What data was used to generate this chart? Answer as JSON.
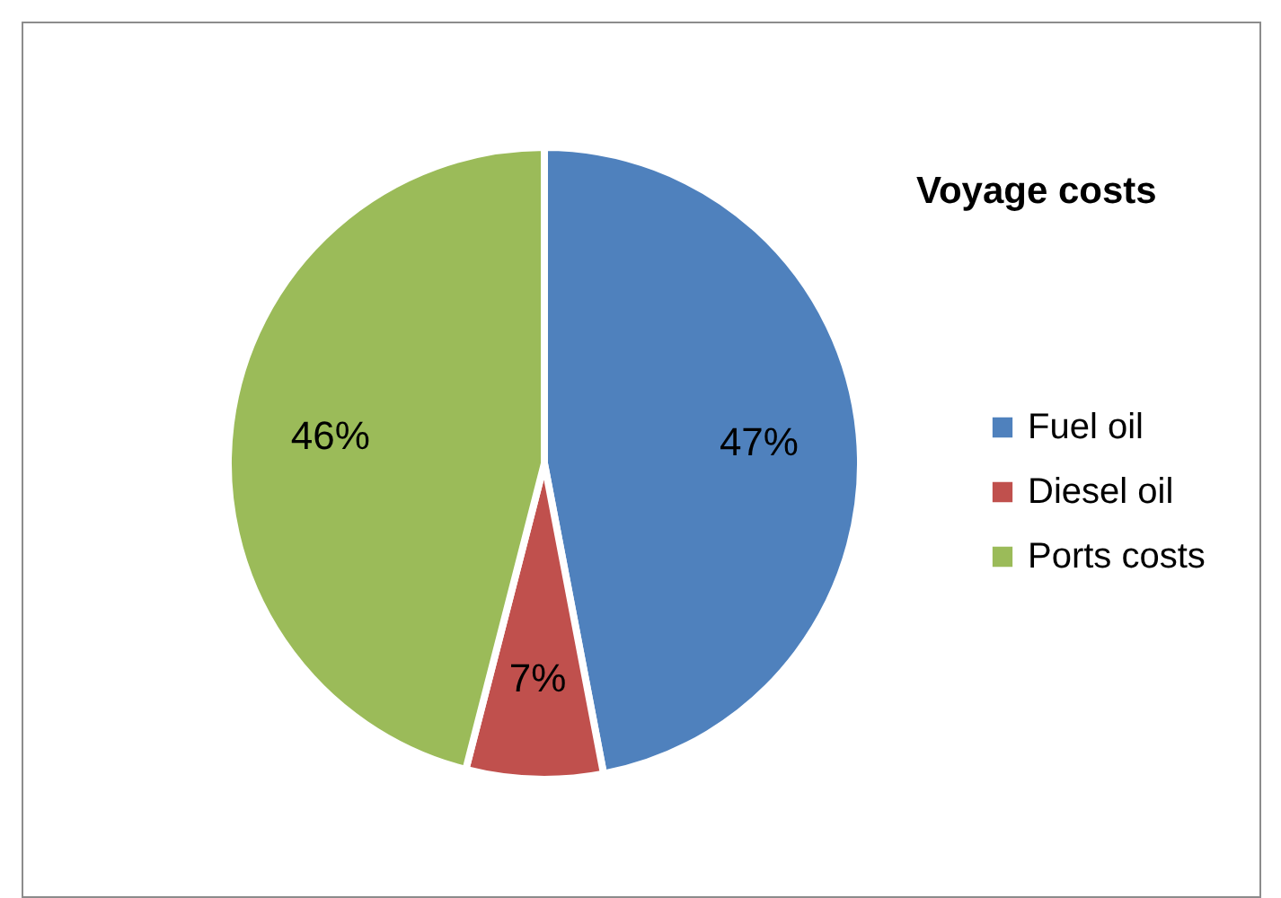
{
  "chart_data": {
    "type": "pie",
    "title": "Voyage costs",
    "categories": [
      "Fuel oil",
      "Diesel oil",
      "Ports costs"
    ],
    "values": [
      47,
      7,
      46
    ],
    "colors": [
      "#4f81bd",
      "#c0504d",
      "#9bbb59"
    ],
    "value_labels": [
      "47%",
      "7%",
      "46%"
    ],
    "legend": "right"
  }
}
